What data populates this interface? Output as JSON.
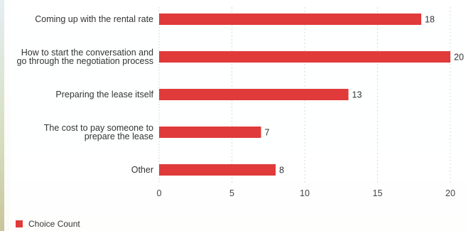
{
  "chart_data": {
    "type": "bar",
    "orientation": "horizontal",
    "categories": [
      [
        "Coming up with the rental rate"
      ],
      [
        "How to start the conversation and",
        "go through the negotiation process"
      ],
      [
        "Preparing the lease itself"
      ],
      [
        "The cost to pay someone to",
        "prepare the lease"
      ],
      [
        "Other"
      ]
    ],
    "values": [
      18,
      20,
      13,
      7,
      8
    ],
    "xlim": [
      0,
      20
    ],
    "xticks": [
      0,
      5,
      10,
      15,
      20
    ],
    "series": [
      {
        "name": "Choice Count",
        "values": [
          18,
          20,
          13,
          7,
          8
        ]
      }
    ],
    "colors": {
      "bar": "#e03a3a",
      "grid": "#d8d8d8"
    },
    "legend_position": "bottom-left",
    "grid": true
  }
}
